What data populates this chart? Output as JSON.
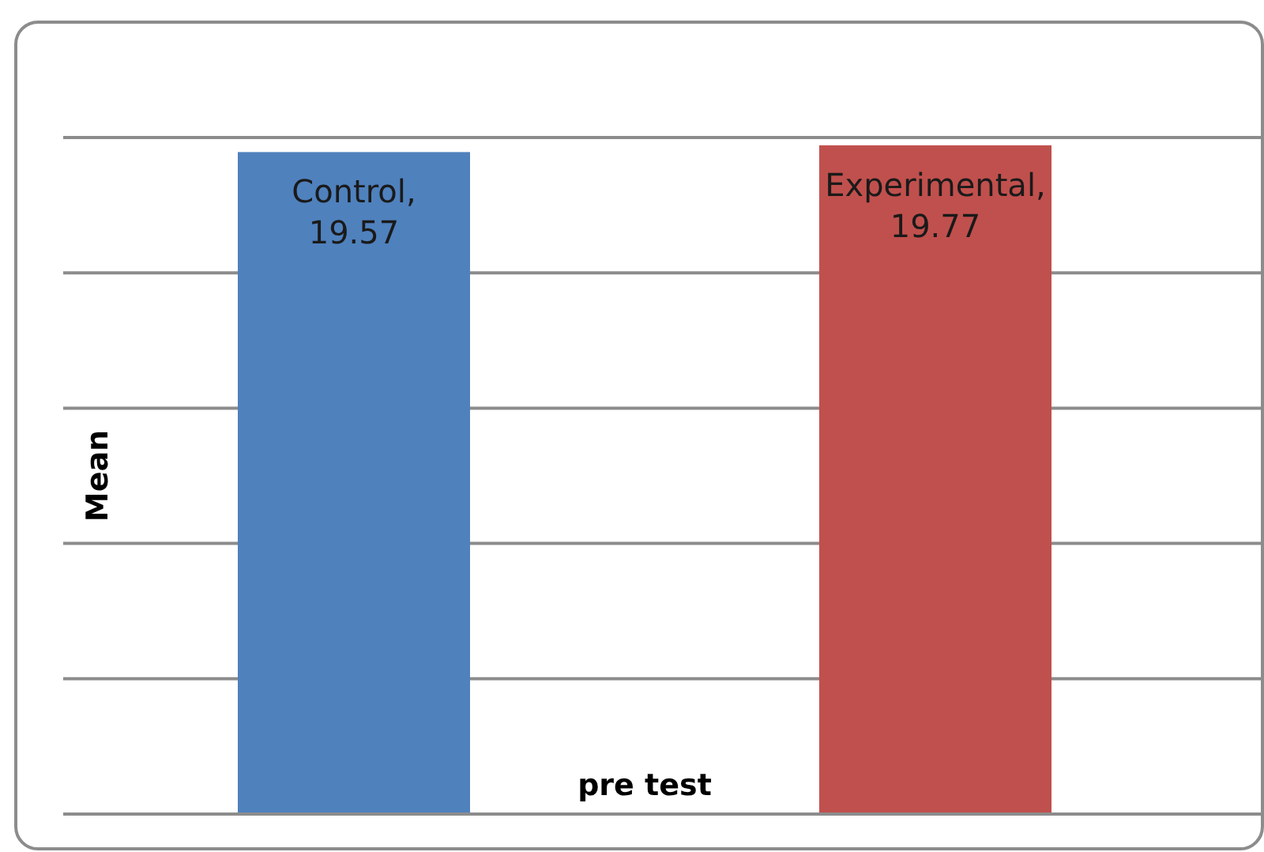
{
  "chart_data": {
    "type": "bar",
    "xlabel": "pre test",
    "ylabel": "Mean",
    "categories": [
      null,
      null
    ],
    "series": [
      {
        "colors": [
          "#4f81bd",
          "#c0504d"
        ],
        "values": [
          19.57,
          19.77
        ],
        "value_labels": [
          "Control, 19.57",
          "Experimental, 19.77"
        ]
      }
    ],
    "ylim": [
      0,
      20
    ],
    "yticks": [
      {
        "value": 0,
        "label": null
      },
      {
        "value": 4,
        "label": null
      },
      {
        "value": 8,
        "label": null
      },
      {
        "value": 12,
        "label": null
      },
      {
        "value": 16,
        "label": null
      },
      {
        "value": 20,
        "label": null
      }
    ],
    "grid": "y",
    "legend": false
  }
}
